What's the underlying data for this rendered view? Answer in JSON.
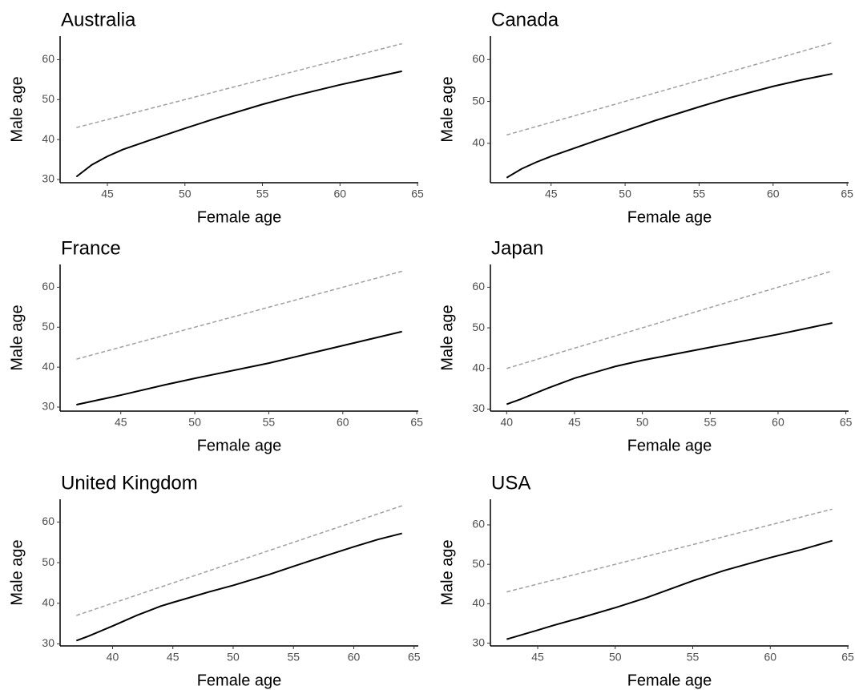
{
  "chart_data": [
    {
      "type": "line",
      "title": "Australia",
      "x_label": "Female age",
      "y_label": "Male age",
      "x": [
        43,
        44,
        45,
        46,
        48,
        50,
        52,
        55,
        57,
        60,
        62,
        64
      ],
      "series": [
        {
          "color": "#000000",
          "dashed": false,
          "values": [
            30.7,
            33.7,
            35.8,
            37.5,
            40.2,
            42.8,
            45.3,
            48.8,
            50.9,
            53.7,
            55.4,
            57.1
          ]
        },
        {
          "color": "#a0a0a0",
          "dashed": true,
          "values": [
            43,
            44,
            45,
            46,
            48,
            50,
            52,
            55,
            57,
            60,
            62,
            64
          ]
        }
      ],
      "xlim": [
        41.95,
        65.05
      ],
      "ylim": [
        29.2,
        65.9
      ],
      "xticks": [
        45,
        50,
        55,
        60,
        65
      ],
      "yticks": [
        30,
        40,
        50,
        60
      ]
    },
    {
      "type": "line",
      "title": "Canada",
      "x_label": "Female age",
      "y_label": "Male age",
      "x": [
        42,
        43,
        44,
        45,
        48,
        50,
        52,
        55,
        57,
        60,
        62,
        64
      ],
      "series": [
        {
          "color": "#000000",
          "dashed": false,
          "values": [
            31.8,
            33.9,
            35.5,
            36.9,
            40.6,
            43.0,
            45.4,
            48.7,
            50.8,
            53.6,
            55.2,
            56.6
          ]
        },
        {
          "color": "#a0a0a0",
          "dashed": true,
          "values": [
            42,
            43,
            44,
            45,
            48,
            50,
            52,
            55,
            57,
            60,
            62,
            64
          ]
        }
      ],
      "xlim": [
        40.9,
        65.1
      ],
      "ylim": [
        30.6,
        65.6
      ],
      "xticks": [
        45,
        50,
        55,
        60,
        65
      ],
      "yticks": [
        40,
        50,
        60
      ]
    },
    {
      "type": "line",
      "title": "France",
      "x_label": "Female age",
      "y_label": "Male age",
      "x": [
        42,
        45,
        48,
        50,
        55,
        60,
        64
      ],
      "series": [
        {
          "color": "#000000",
          "dashed": false,
          "values": [
            30.6,
            33.0,
            35.6,
            37.2,
            41.0,
            45.4,
            48.9
          ]
        },
        {
          "color": "#a0a0a0",
          "dashed": true,
          "values": [
            42,
            45,
            48,
            50,
            55,
            60,
            64
          ]
        }
      ],
      "xlim": [
        40.9,
        65.1
      ],
      "ylim": [
        29.0,
        65.7
      ],
      "xticks": [
        45,
        50,
        55,
        60,
        65
      ],
      "yticks": [
        30,
        40,
        50,
        60
      ]
    },
    {
      "type": "line",
      "title": "Japan",
      "x_label": "Female age",
      "y_label": "Male age",
      "x": [
        40,
        41,
        43,
        45,
        48,
        50,
        55,
        60,
        64
      ],
      "series": [
        {
          "color": "#000000",
          "dashed": false,
          "values": [
            31.2,
            32.4,
            35.1,
            37.6,
            40.5,
            42.0,
            45.2,
            48.4,
            51.2
          ]
        },
        {
          "color": "#a0a0a0",
          "dashed": true,
          "values": [
            40,
            41,
            43,
            45,
            48,
            50,
            55,
            60,
            64
          ]
        }
      ],
      "xlim": [
        38.8,
        65.2
      ],
      "ylim": [
        29.5,
        65.6
      ],
      "xticks": [
        40,
        45,
        50,
        55,
        60,
        65
      ],
      "yticks": [
        30,
        40,
        50,
        60
      ]
    },
    {
      "type": "line",
      "title": "United Kingdom",
      "x_label": "Female age",
      "y_label": "Male age",
      "x": [
        37,
        38,
        40,
        42,
        44,
        45,
        48,
        50,
        53,
        55,
        58,
        60,
        62,
        64
      ],
      "series": [
        {
          "color": "#000000",
          "dashed": false,
          "values": [
            30.8,
            31.9,
            34.4,
            37.0,
            39.3,
            40.2,
            42.8,
            44.4,
            47.1,
            49.1,
            52.0,
            53.9,
            55.7,
            57.2
          ]
        },
        {
          "color": "#a0a0a0",
          "dashed": true,
          "values": [
            37,
            38,
            40,
            42,
            44,
            45,
            48,
            50,
            53,
            55,
            58,
            60,
            62,
            64
          ]
        }
      ],
      "xlim": [
        35.65,
        65.35
      ],
      "ylim": [
        29.5,
        65.6
      ],
      "xticks": [
        40,
        45,
        50,
        55,
        60,
        65
      ],
      "yticks": [
        30,
        40,
        50,
        60
      ]
    },
    {
      "type": "line",
      "title": "USA",
      "x_label": "Female age",
      "y_label": "Male age",
      "x": [
        43,
        45,
        46,
        48,
        50,
        52,
        55,
        57,
        60,
        62,
        64
      ],
      "series": [
        {
          "color": "#000000",
          "dashed": false,
          "values": [
            31.0,
            33.3,
            34.5,
            36.7,
            39.0,
            41.5,
            45.8,
            48.4,
            51.7,
            53.7,
            56.0
          ]
        },
        {
          "color": "#a0a0a0",
          "dashed": true,
          "values": [
            43,
            45,
            46,
            48,
            50,
            52,
            55,
            57,
            60,
            62,
            64
          ]
        }
      ],
      "xlim": [
        41.95,
        65.05
      ],
      "ylim": [
        29.3,
        66.5
      ],
      "xticks": [
        45,
        50,
        55,
        60,
        65
      ],
      "yticks": [
        30,
        40,
        50,
        60
      ]
    }
  ]
}
